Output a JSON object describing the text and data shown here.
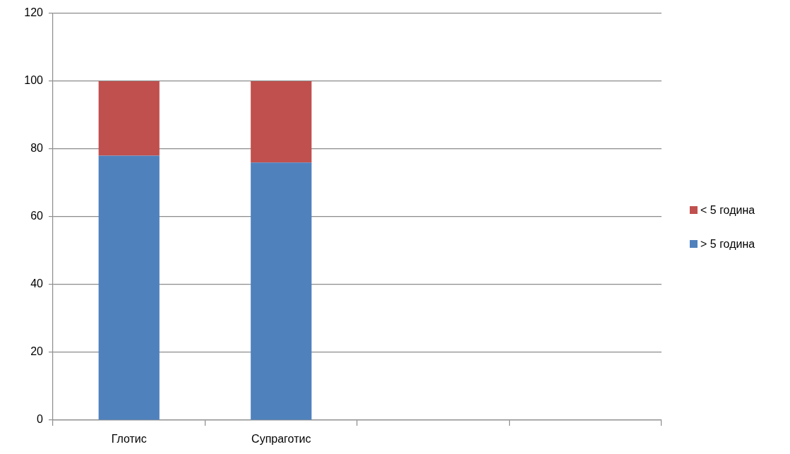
{
  "chart_data": {
    "type": "bar",
    "stacked": true,
    "categories": [
      "Глотис",
      "Супраготис",
      null,
      null
    ],
    "series": [
      {
        "name": "> 5 година",
        "color": "#4f81bd",
        "values": [
          78,
          76,
          null,
          null
        ]
      },
      {
        "name": "< 5 година",
        "color": "#c0504d",
        "values": [
          22,
          24,
          null,
          null
        ]
      }
    ],
    "ylim": [
      0,
      120
    ],
    "yticks": [
      0,
      20,
      40,
      60,
      80,
      100,
      120
    ],
    "grid": "y",
    "legend": "right"
  }
}
